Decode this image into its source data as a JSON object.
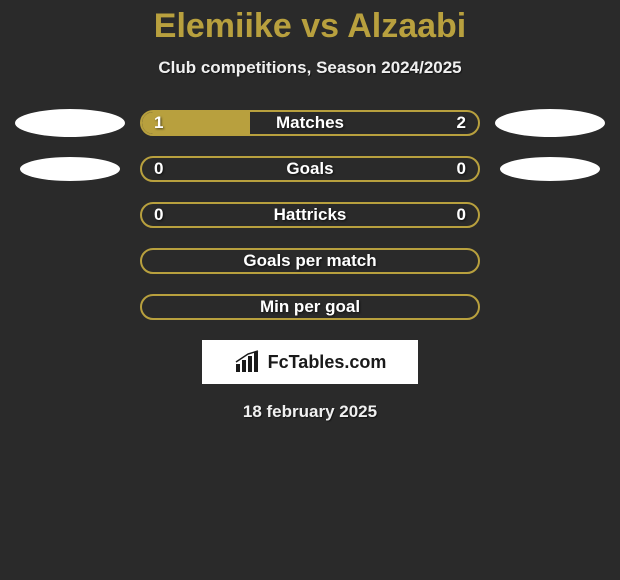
{
  "title": "Elemiike vs Alzaabi",
  "subtitle": "Club competitions, Season 2024/2025",
  "accent_color": "#b8a03e",
  "text_color": "#ffffff",
  "background_color": "#2a2a2a",
  "rows": [
    {
      "label": "Matches",
      "left_value": "1",
      "right_value": "2",
      "left_fill_pct": 32,
      "right_fill_pct": 0,
      "fill_color": "#b8a03e",
      "show_left_avatar": true,
      "show_right_avatar": true,
      "avatar_size": "large"
    },
    {
      "label": "Goals",
      "left_value": "0",
      "right_value": "0",
      "left_fill_pct": 0,
      "right_fill_pct": 0,
      "fill_color": "#b8a03e",
      "show_left_avatar": true,
      "show_right_avatar": true,
      "avatar_size": "small"
    },
    {
      "label": "Hattricks",
      "left_value": "0",
      "right_value": "0",
      "left_fill_pct": 0,
      "right_fill_pct": 0,
      "fill_color": "#b8a03e",
      "show_left_avatar": false,
      "show_right_avatar": false
    },
    {
      "label": "Goals per match",
      "left_value": "",
      "right_value": "",
      "left_fill_pct": 0,
      "right_fill_pct": 0,
      "fill_color": "#b8a03e",
      "show_left_avatar": false,
      "show_right_avatar": false
    },
    {
      "label": "Min per goal",
      "left_value": "",
      "right_value": "",
      "left_fill_pct": 0,
      "right_fill_pct": 0,
      "fill_color": "#b8a03e",
      "show_left_avatar": false,
      "show_right_avatar": false
    }
  ],
  "logo": {
    "text": "FcTables.com",
    "bar_color": "#1a1a1a"
  },
  "date": "18 february 2025"
}
